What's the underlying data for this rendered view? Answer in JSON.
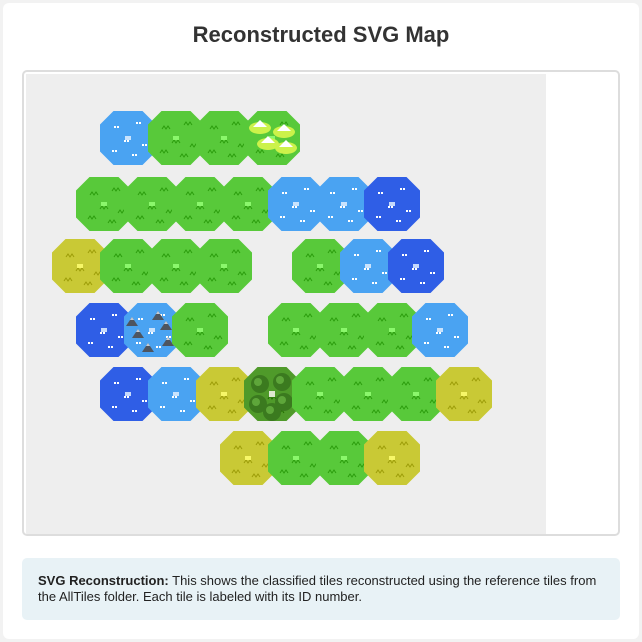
{
  "title": "Reconstructed SVG Map",
  "info": {
    "label": "SVG Reconstruction:",
    "text": "This shows the classified tiles reconstructed using the reference tiles from the AllTiles folder. Each tile is labeled with its ID number."
  },
  "tile_colors": {
    "grass": "#58c93a",
    "water_light": "#4aa3f2",
    "water_deep": "#2f5ee6",
    "sand": "#c9c935",
    "forest": "#4f9a2a"
  },
  "map": {
    "rows": [
      [
        {
          "type": "water_light",
          "feature": ""
        },
        {
          "type": "grass",
          "feature": ""
        },
        {
          "type": "grass",
          "feature": ""
        },
        {
          "type": "grass",
          "feature": "snowy-mountains"
        }
      ],
      [
        {
          "type": "grass",
          "feature": ""
        },
        {
          "type": "grass",
          "feature": ""
        },
        {
          "type": "grass",
          "feature": ""
        },
        {
          "type": "grass",
          "feature": ""
        },
        {
          "type": "water_light",
          "feature": ""
        },
        {
          "type": "water_light",
          "feature": ""
        },
        {
          "type": "water_deep",
          "feature": ""
        }
      ],
      [
        {
          "type": "sand",
          "feature": ""
        },
        {
          "type": "grass",
          "feature": ""
        },
        {
          "type": "grass",
          "feature": ""
        },
        {
          "type": "grass",
          "feature": ""
        },
        {
          "type": "empty",
          "feature": ""
        },
        {
          "type": "grass",
          "feature": ""
        },
        {
          "type": "water_light",
          "feature": ""
        },
        {
          "type": "water_deep",
          "feature": ""
        }
      ],
      [
        {
          "type": "water_deep",
          "feature": ""
        },
        {
          "type": "water_light",
          "feature": "rocks"
        },
        {
          "type": "grass",
          "feature": ""
        },
        {
          "type": "empty",
          "feature": ""
        },
        {
          "type": "grass",
          "feature": ""
        },
        {
          "type": "grass",
          "feature": ""
        },
        {
          "type": "grass",
          "feature": ""
        },
        {
          "type": "water_light",
          "feature": ""
        }
      ],
      [
        {
          "type": "water_deep",
          "feature": ""
        },
        {
          "type": "water_light",
          "feature": ""
        },
        {
          "type": "sand",
          "feature": ""
        },
        {
          "type": "forest",
          "feature": "trees"
        },
        {
          "type": "grass",
          "feature": ""
        },
        {
          "type": "grass",
          "feature": ""
        },
        {
          "type": "grass",
          "feature": ""
        },
        {
          "type": "sand",
          "feature": ""
        }
      ],
      [
        {
          "type": "sand",
          "feature": ""
        },
        {
          "type": "grass",
          "feature": ""
        },
        {
          "type": "grass",
          "feature": ""
        },
        {
          "type": "sand",
          "feature": ""
        }
      ]
    ]
  }
}
